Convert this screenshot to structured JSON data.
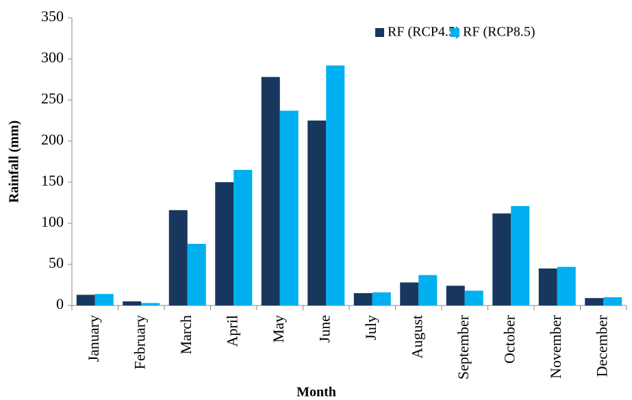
{
  "chart_data": {
    "type": "bar",
    "x_label": "Month",
    "y_label": "Rainfall (mm)",
    "categories": [
      "January",
      "February",
      "March",
      "April",
      "May",
      "June",
      "July",
      "August",
      "September",
      "October",
      "November",
      "December"
    ],
    "series": [
      {
        "name": "RF (RCP4.5)",
        "color": "#17375e",
        "values": [
          13,
          5,
          116,
          150,
          278,
          225,
          15,
          28,
          24,
          112,
          45,
          9
        ]
      },
      {
        "name": "RF (RCP8.5)",
        "color": "#00b0f0",
        "values": [
          14,
          3,
          75,
          165,
          237,
          292,
          16,
          37,
          18,
          121,
          47,
          10
        ]
      }
    ],
    "ylim": [
      0,
      350
    ],
    "yticks": [
      0,
      50,
      100,
      150,
      200,
      250,
      300,
      350
    ],
    "grid": false,
    "legend": "top-right"
  }
}
